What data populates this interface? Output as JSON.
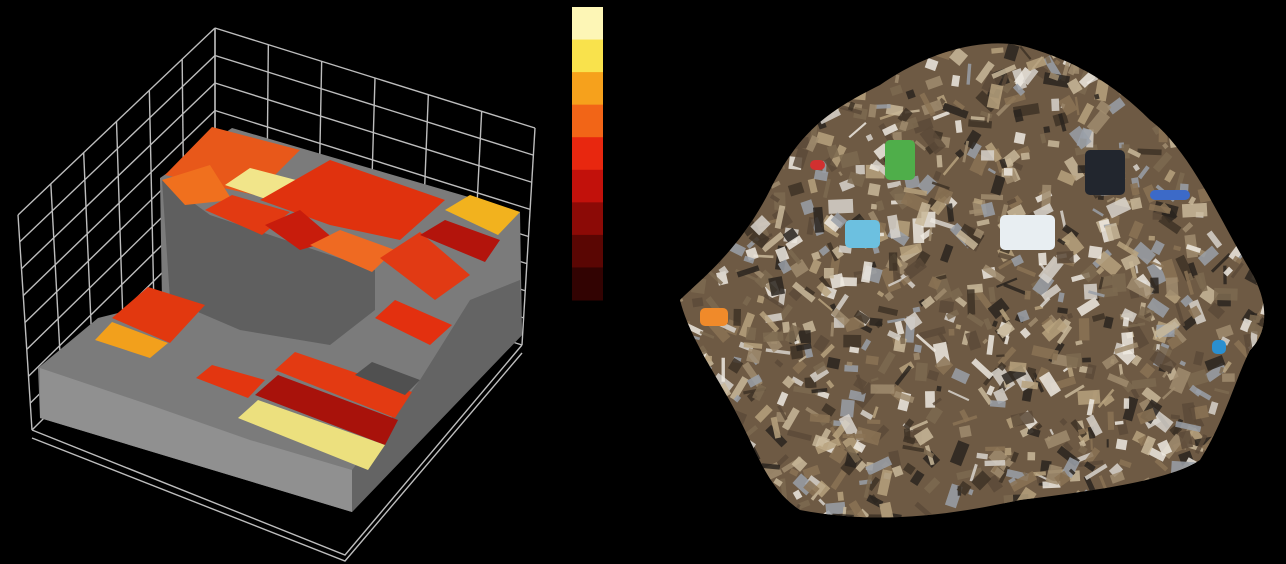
{
  "colorbar": {
    "colors": [
      "#fdf6b6",
      "#f9e24c",
      "#f6a11c",
      "#f26517",
      "#e8270f",
      "#c2110b",
      "#8c0a06",
      "#5a0603",
      "#320302"
    ]
  }
}
